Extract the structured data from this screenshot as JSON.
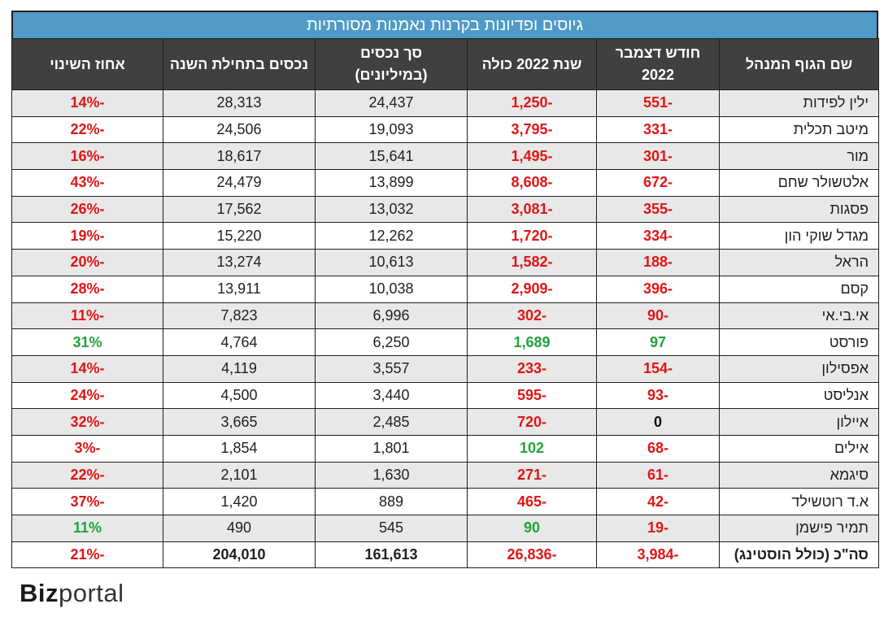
{
  "title": "גיוסים ופדיונות בקרנות נאמנות מסורתיות",
  "headers": [
    "שם הגוף המנהל",
    "חודש דצמבר 2022",
    "שנת 2022 כולה",
    "סך נכסים (במיליונים)",
    "נכסים בתחילת השנה",
    "אחוז השינוי"
  ],
  "rows": [
    {
      "name": "ילין לפידות",
      "dec": "-551",
      "year": "-1,250",
      "assets": "24,437",
      "start": "28,313",
      "pct": "-14%"
    },
    {
      "name": "מיטב תכלית",
      "dec": "-331",
      "year": "-3,795",
      "assets": "19,093",
      "start": "24,506",
      "pct": "-22%"
    },
    {
      "name": "מור",
      "dec": "-301",
      "year": "-1,495",
      "assets": "15,641",
      "start": "18,617",
      "pct": "-16%"
    },
    {
      "name": "אלטשולר שחם",
      "dec": "-672",
      "year": "-8,608",
      "assets": "13,899",
      "start": "24,479",
      "pct": "-43%"
    },
    {
      "name": "פסגות",
      "dec": "-355",
      "year": "-3,081",
      "assets": "13,032",
      "start": "17,562",
      "pct": "-26%"
    },
    {
      "name": "מגדל שוקי הון",
      "dec": "-334",
      "year": "-1,720",
      "assets": "12,262",
      "start": "15,220",
      "pct": "-19%"
    },
    {
      "name": "הראל",
      "dec": "-188",
      "year": "-1,582",
      "assets": "10,613",
      "start": "13,274",
      "pct": "-20%"
    },
    {
      "name": "קסם",
      "dec": "-396",
      "year": "-2,909",
      "assets": "10,038",
      "start": "13,911",
      "pct": "-28%"
    },
    {
      "name": "אי.בי.אי",
      "dec": "-90",
      "year": "-302",
      "assets": "6,996",
      "start": "7,823",
      "pct": "-11%"
    },
    {
      "name": "פורסט",
      "dec": "97",
      "year": "1,689",
      "assets": "6,250",
      "start": "4,764",
      "pct": "31%"
    },
    {
      "name": "אפסילון",
      "dec": "-154",
      "year": "-233",
      "assets": "3,557",
      "start": "4,119",
      "pct": "-14%"
    },
    {
      "name": "אנליסט",
      "dec": "-93",
      "year": "-595",
      "assets": "3,440",
      "start": "4,500",
      "pct": "-24%"
    },
    {
      "name": "איילון",
      "dec": "0",
      "year": "-720",
      "assets": "2,485",
      "start": "3,665",
      "pct": "-32%"
    },
    {
      "name": "אילים",
      "dec": "-68",
      "year": "102",
      "assets": "1,801",
      "start": "1,854",
      "pct": "-3%"
    },
    {
      "name": "סיגמא",
      "dec": "-61",
      "year": "-271",
      "assets": "1,630",
      "start": "2,101",
      "pct": "-22%"
    },
    {
      "name": "א.ד רוטשילד",
      "dec": "-42",
      "year": "-465",
      "assets": "889",
      "start": "1,420",
      "pct": "-37%"
    },
    {
      "name": "תמיר פישמן",
      "dec": "-19",
      "year": "90",
      "assets": "545",
      "start": "490",
      "pct": "11%"
    }
  ],
  "total": {
    "name": "סה\"כ (כולל הוסטינג)",
    "dec": "-3,984",
    "year": "-26,836",
    "assets": "161,613",
    "start": "204,010",
    "pct": "-21%"
  },
  "logo": {
    "biz": "Biz",
    "portal": "portal"
  },
  "colors": {
    "header_bg": "#404040",
    "title_bg": "#4f9ac7",
    "negative": "#e01515",
    "positive": "#22a33a"
  }
}
